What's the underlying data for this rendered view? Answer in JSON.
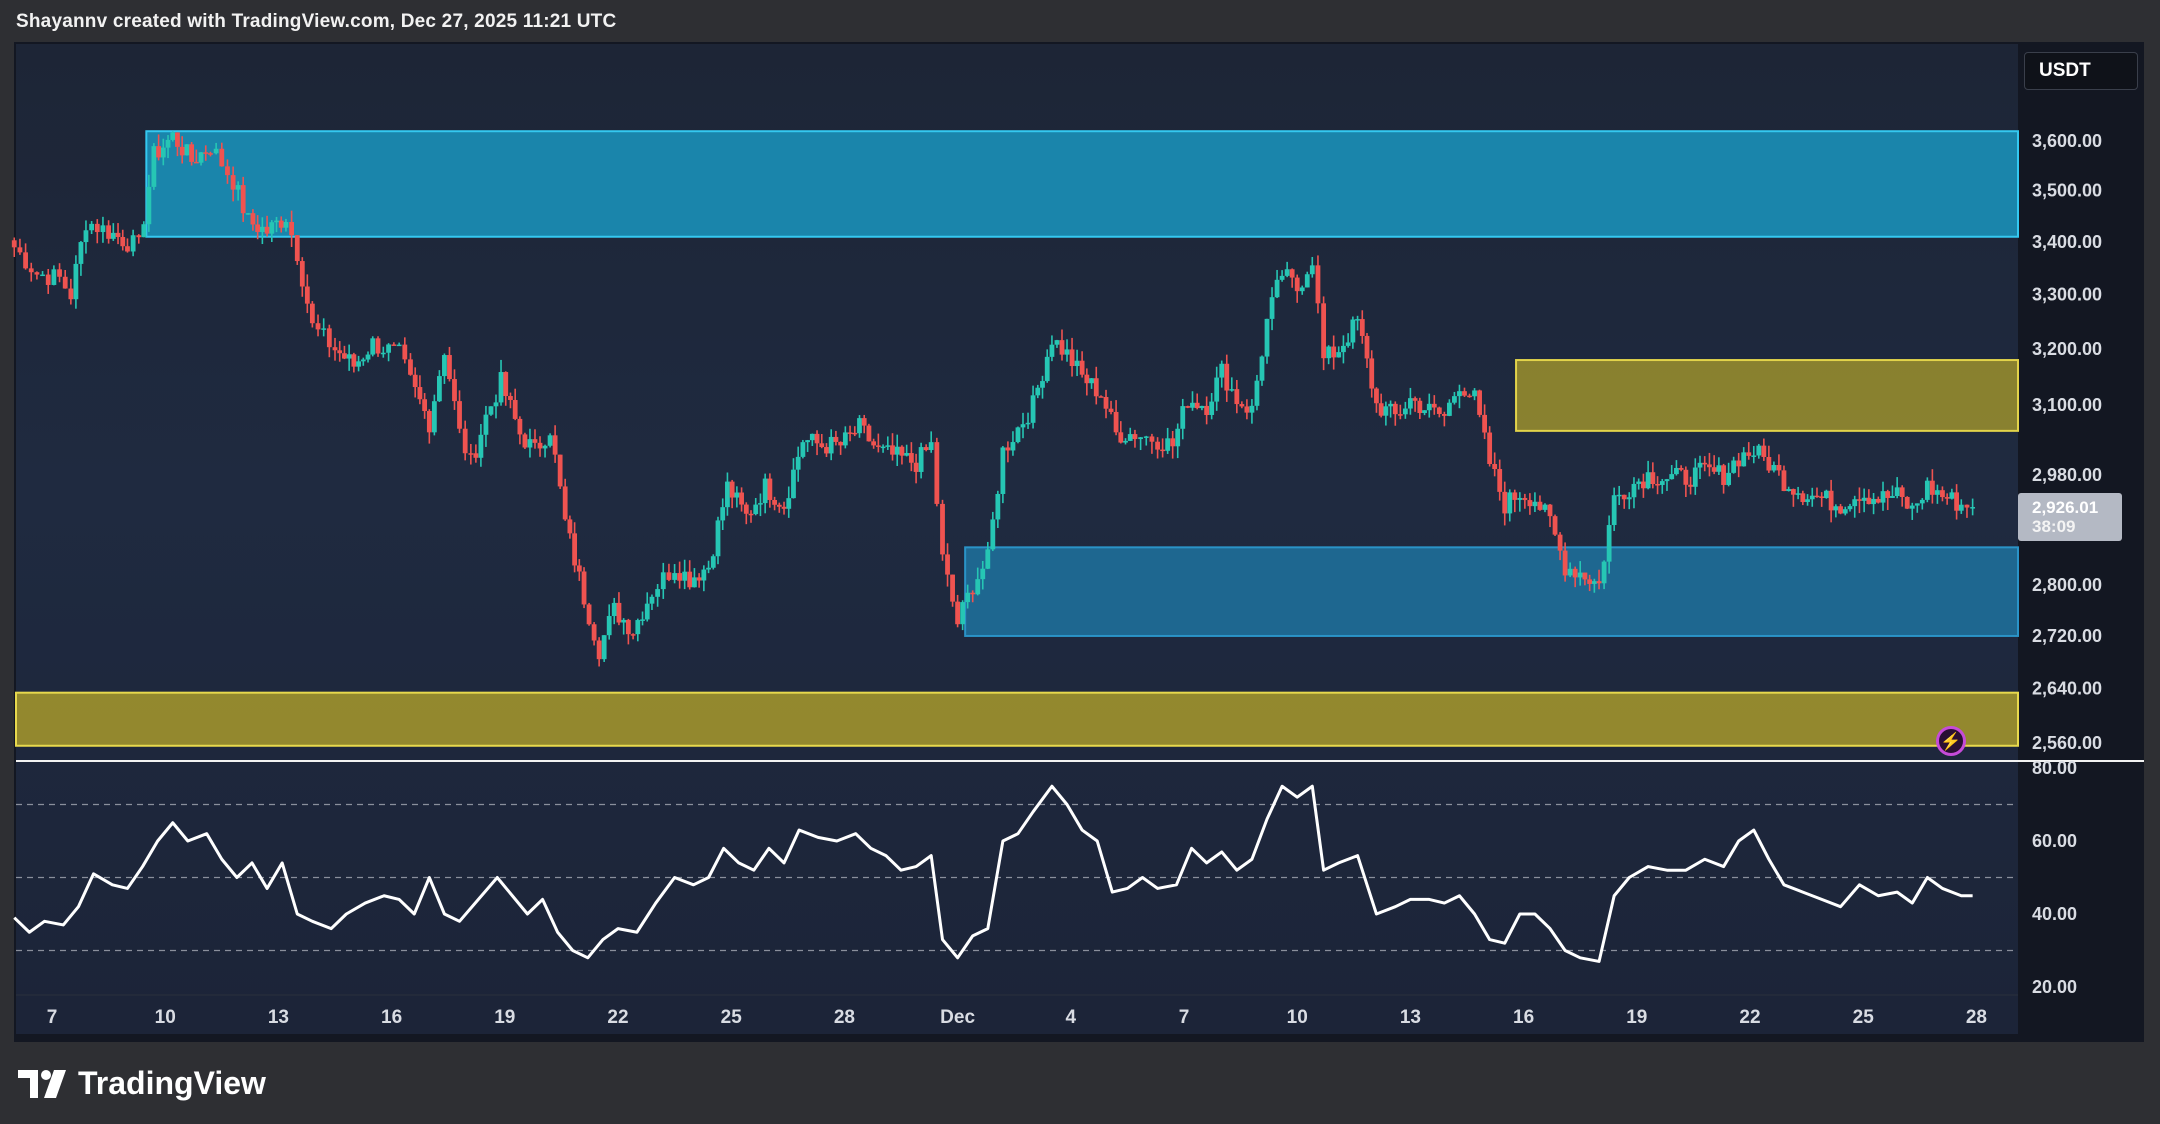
{
  "header": {
    "credit": "Shayannv created with TradingView.com, Dec 27, 2025 11:21 UTC"
  },
  "currency": "USDT",
  "last_price": {
    "value": "2,926.01",
    "countdown": "38:09"
  },
  "logo": {
    "text": "TradingView",
    "icon": "tradingview-logo-icon"
  },
  "alert_icon": "lightning-bolt-icon",
  "colors": {
    "up": "#26c6b4",
    "down": "#ef5350",
    "supply_zone": "#1a9fc9",
    "demand_zone": "#1e7fae",
    "yellow_zone": "#c9b833",
    "rsi_line": "#ffffff",
    "background": "#131722"
  },
  "chart_data": [
    {
      "type": "candlestick",
      "ylabel_unit": "USDT",
      "y_scale": "log",
      "ylim": [
        2550,
        3680
      ],
      "y_ticks": [
        {
          "value": 3600,
          "label": "3,600.00"
        },
        {
          "value": 3500,
          "label": "3,500.00"
        },
        {
          "value": 3400,
          "label": "3,400.00"
        },
        {
          "value": 3300,
          "label": "3,300.00"
        },
        {
          "value": 3200,
          "label": "3,200.00"
        },
        {
          "value": 3100,
          "label": "3,100.00"
        },
        {
          "value": 2980,
          "label": "2,980.00"
        },
        {
          "value": 2800,
          "label": "2,800.00"
        },
        {
          "value": 2720,
          "label": "2,720.00"
        },
        {
          "value": 2640,
          "label": "2,640.00"
        },
        {
          "value": 2560,
          "label": "2,560.00"
        }
      ],
      "x_range_days": [
        6,
        29
      ],
      "x_ticks": [
        {
          "day": 7,
          "label": "7"
        },
        {
          "day": 10,
          "label": "10"
        },
        {
          "day": 13,
          "label": "13"
        },
        {
          "day": 16,
          "label": "16"
        },
        {
          "day": 19,
          "label": "19"
        },
        {
          "day": 22,
          "label": "22"
        },
        {
          "day": 25,
          "label": "25"
        },
        {
          "day": 28,
          "label": "28"
        },
        {
          "day": 31,
          "label": "Dec"
        },
        {
          "day": 34,
          "label": "4"
        },
        {
          "day": 37,
          "label": "7"
        },
        {
          "day": 40,
          "label": "10"
        },
        {
          "day": 43,
          "label": "13"
        },
        {
          "day": 46,
          "label": "16"
        },
        {
          "day": 49,
          "label": "19"
        },
        {
          "day": 52,
          "label": "22"
        },
        {
          "day": 55,
          "label": "25"
        },
        {
          "day": 58,
          "label": "28"
        }
      ],
      "close_path": [
        [
          6.0,
          3390
        ],
        [
          6.6,
          3340
        ],
        [
          7.2,
          3330
        ],
        [
          7.5,
          3300
        ],
        [
          7.9,
          3440
        ],
        [
          8.5,
          3420
        ],
        [
          9.0,
          3400
        ],
        [
          9.3,
          3390
        ],
        [
          9.7,
          3570
        ],
        [
          10.2,
          3610
        ],
        [
          10.7,
          3560
        ],
        [
          11.2,
          3590
        ],
        [
          11.8,
          3520
        ],
        [
          12.2,
          3440
        ],
        [
          12.7,
          3420
        ],
        [
          13.2,
          3450
        ],
        [
          13.5,
          3380
        ],
        [
          13.9,
          3240
        ],
        [
          14.5,
          3200
        ],
        [
          15.0,
          3170
        ],
        [
          15.5,
          3210
        ],
        [
          16.2,
          3190
        ],
        [
          16.5,
          3140
        ],
        [
          17.0,
          3070
        ],
        [
          17.4,
          3200
        ],
        [
          17.8,
          3050
        ],
        [
          18.1,
          3000
        ],
        [
          18.5,
          3080
        ],
        [
          18.9,
          3140
        ],
        [
          19.4,
          3050
        ],
        [
          19.8,
          3020
        ],
        [
          20.2,
          3060
        ],
        [
          20.6,
          2900
        ],
        [
          21.1,
          2780
        ],
        [
          21.5,
          2700
        ],
        [
          21.9,
          2760
        ],
        [
          22.4,
          2730
        ],
        [
          22.9,
          2790
        ],
        [
          23.5,
          2830
        ],
        [
          23.9,
          2810
        ],
        [
          24.4,
          2830
        ],
        [
          24.9,
          2960
        ],
        [
          25.4,
          2910
        ],
        [
          25.9,
          2960
        ],
        [
          26.4,
          2930
        ],
        [
          26.9,
          3040
        ],
        [
          27.4,
          3030
        ],
        [
          27.9,
          3030
        ],
        [
          28.4,
          3060
        ],
        [
          28.9,
          3020
        ],
        [
          29.4,
          3010
        ],
        [
          29.9,
          3000
        ],
        [
          30.3,
          3030
        ],
        [
          30.6,
          2840
        ],
        [
          31.0,
          2740
        ],
        [
          31.4,
          2800
        ],
        [
          31.8,
          2840
        ],
        [
          32.2,
          3020
        ],
        [
          32.6,
          3060
        ],
        [
          33.0,
          3100
        ],
        [
          33.5,
          3220
        ],
        [
          33.9,
          3190
        ],
        [
          34.3,
          3150
        ],
        [
          34.8,
          3120
        ],
        [
          35.2,
          3050
        ],
        [
          35.7,
          3050
        ],
        [
          36.3,
          3040
        ],
        [
          36.7,
          3030
        ],
        [
          37.1,
          3110
        ],
        [
          37.6,
          3100
        ],
        [
          38.0,
          3160
        ],
        [
          38.4,
          3110
        ],
        [
          38.8,
          3090
        ],
        [
          39.2,
          3250
        ],
        [
          39.6,
          3340
        ],
        [
          40.0,
          3310
        ],
        [
          40.4,
          3370
        ],
        [
          40.7,
          3180
        ],
        [
          41.1,
          3200
        ],
        [
          41.6,
          3250
        ],
        [
          42.1,
          3100
        ],
        [
          42.6,
          3080
        ],
        [
          43.0,
          3110
        ],
        [
          43.5,
          3090
        ],
        [
          43.9,
          3080
        ],
        [
          44.3,
          3140
        ],
        [
          44.7,
          3110
        ],
        [
          45.1,
          3000
        ],
        [
          45.5,
          2930
        ],
        [
          45.9,
          2950
        ],
        [
          46.3,
          2940
        ],
        [
          46.7,
          2900
        ],
        [
          47.1,
          2830
        ],
        [
          47.5,
          2820
        ],
        [
          48.0,
          2800
        ],
        [
          48.4,
          2940
        ],
        [
          48.8,
          2960
        ],
        [
          49.3,
          2980
        ],
        [
          49.8,
          2975
        ],
        [
          50.3,
          2975
        ],
        [
          50.8,
          2985
        ],
        [
          51.3,
          2980
        ],
        [
          51.7,
          3010
        ],
        [
          52.1,
          3020
        ],
        [
          52.5,
          3000
        ],
        [
          52.9,
          2970
        ],
        [
          53.4,
          2950
        ],
        [
          53.9,
          2940
        ],
        [
          54.4,
          2930
        ],
        [
          54.9,
          2950
        ],
        [
          55.4,
          2940
        ],
        [
          55.9,
          2945
        ],
        [
          56.3,
          2920
        ],
        [
          56.7,
          2960
        ],
        [
          57.1,
          2945
        ],
        [
          57.6,
          2930
        ],
        [
          57.9,
          2926
        ]
      ],
      "zones": [
        {
          "kind": "supply",
          "day_start": 9.5,
          "day_end": 58.5,
          "low": 3410,
          "high": 3620
        },
        {
          "kind": "resistance",
          "day_start": 45.8,
          "day_end": 58.5,
          "low": 3055,
          "high": 3180
        },
        {
          "kind": "demand",
          "day_start": 31.2,
          "day_end": 58.5,
          "low": 2720,
          "high": 2860
        },
        {
          "kind": "support",
          "day_start": 6.0,
          "day_end": 58.5,
          "low": 2556,
          "high": 2634
        }
      ]
    },
    {
      "type": "line",
      "ylim": [
        20,
        80
      ],
      "y_ticks": [
        {
          "value": 80,
          "label": "80.00"
        },
        {
          "value": 60,
          "label": "60.00"
        },
        {
          "value": 40,
          "label": "40.00"
        },
        {
          "value": 20,
          "label": "20.00"
        }
      ],
      "bands": [
        70,
        50,
        30
      ],
      "series": [
        {
          "points": [
            [
              6.0,
              39
            ],
            [
              6.4,
              35
            ],
            [
              6.8,
              38
            ],
            [
              7.3,
              37
            ],
            [
              7.7,
              42
            ],
            [
              8.1,
              51
            ],
            [
              8.6,
              48
            ],
            [
              9.0,
              47
            ],
            [
              9.4,
              53
            ],
            [
              9.8,
              60
            ],
            [
              10.2,
              65
            ],
            [
              10.6,
              60
            ],
            [
              11.1,
              62
            ],
            [
              11.5,
              55
            ],
            [
              11.9,
              50
            ],
            [
              12.3,
              54
            ],
            [
              12.7,
              47
            ],
            [
              13.1,
              54
            ],
            [
              13.5,
              40
            ],
            [
              13.9,
              38
            ],
            [
              14.4,
              36
            ],
            [
              14.8,
              40
            ],
            [
              15.3,
              43
            ],
            [
              15.8,
              45
            ],
            [
              16.2,
              44
            ],
            [
              16.6,
              40
            ],
            [
              17.0,
              50
            ],
            [
              17.4,
              40
            ],
            [
              17.8,
              38
            ],
            [
              18.3,
              44
            ],
            [
              18.8,
              50
            ],
            [
              19.2,
              45
            ],
            [
              19.6,
              40
            ],
            [
              20.0,
              44
            ],
            [
              20.4,
              35
            ],
            [
              20.8,
              30
            ],
            [
              21.2,
              28
            ],
            [
              21.6,
              33
            ],
            [
              22.0,
              36
            ],
            [
              22.5,
              35
            ],
            [
              23.0,
              43
            ],
            [
              23.5,
              50
            ],
            [
              24.0,
              48
            ],
            [
              24.4,
              50
            ],
            [
              24.8,
              58
            ],
            [
              25.2,
              54
            ],
            [
              25.6,
              52
            ],
            [
              26.0,
              58
            ],
            [
              26.4,
              54
            ],
            [
              26.8,
              63
            ],
            [
              27.3,
              61
            ],
            [
              27.8,
              60
            ],
            [
              28.3,
              62
            ],
            [
              28.7,
              58
            ],
            [
              29.1,
              56
            ],
            [
              29.5,
              52
            ],
            [
              29.9,
              53
            ],
            [
              30.3,
              56
            ],
            [
              30.6,
              33
            ],
            [
              31.0,
              28
            ],
            [
              31.4,
              34
            ],
            [
              31.8,
              36
            ],
            [
              32.2,
              60
            ],
            [
              32.6,
              62
            ],
            [
              33.0,
              68
            ],
            [
              33.5,
              75
            ],
            [
              33.9,
              70
            ],
            [
              34.3,
              63
            ],
            [
              34.7,
              60
            ],
            [
              35.1,
              46
            ],
            [
              35.5,
              47
            ],
            [
              35.9,
              50
            ],
            [
              36.3,
              47
            ],
            [
              36.8,
              48
            ],
            [
              37.2,
              58
            ],
            [
              37.6,
              54
            ],
            [
              38.0,
              57
            ],
            [
              38.4,
              52
            ],
            [
              38.8,
              55
            ],
            [
              39.2,
              66
            ],
            [
              39.6,
              75
            ],
            [
              40.0,
              72
            ],
            [
              40.4,
              75
            ],
            [
              40.7,
              52
            ],
            [
              41.1,
              54
            ],
            [
              41.6,
              56
            ],
            [
              42.1,
              40
            ],
            [
              42.6,
              42
            ],
            [
              43.0,
              44
            ],
            [
              43.5,
              44
            ],
            [
              43.9,
              43
            ],
            [
              44.3,
              45
            ],
            [
              44.7,
              40
            ],
            [
              45.1,
              33
            ],
            [
              45.5,
              32
            ],
            [
              45.9,
              40
            ],
            [
              46.3,
              40
            ],
            [
              46.7,
              36
            ],
            [
              47.1,
              30
            ],
            [
              47.5,
              28
            ],
            [
              48.0,
              27
            ],
            [
              48.4,
              45
            ],
            [
              48.8,
              50
            ],
            [
              49.3,
              53
            ],
            [
              49.8,
              52
            ],
            [
              50.3,
              52
            ],
            [
              50.8,
              55
            ],
            [
              51.3,
              53
            ],
            [
              51.7,
              60
            ],
            [
              52.1,
              63
            ],
            [
              52.5,
              55
            ],
            [
              52.9,
              48
            ],
            [
              53.4,
              46
            ],
            [
              53.9,
              44
            ],
            [
              54.4,
              42
            ],
            [
              54.9,
              48
            ],
            [
              55.4,
              45
            ],
            [
              55.9,
              46
            ],
            [
              56.3,
              43
            ],
            [
              56.7,
              50
            ],
            [
              57.1,
              47
            ],
            [
              57.6,
              45
            ],
            [
              57.9,
              45
            ]
          ]
        }
      ]
    }
  ]
}
